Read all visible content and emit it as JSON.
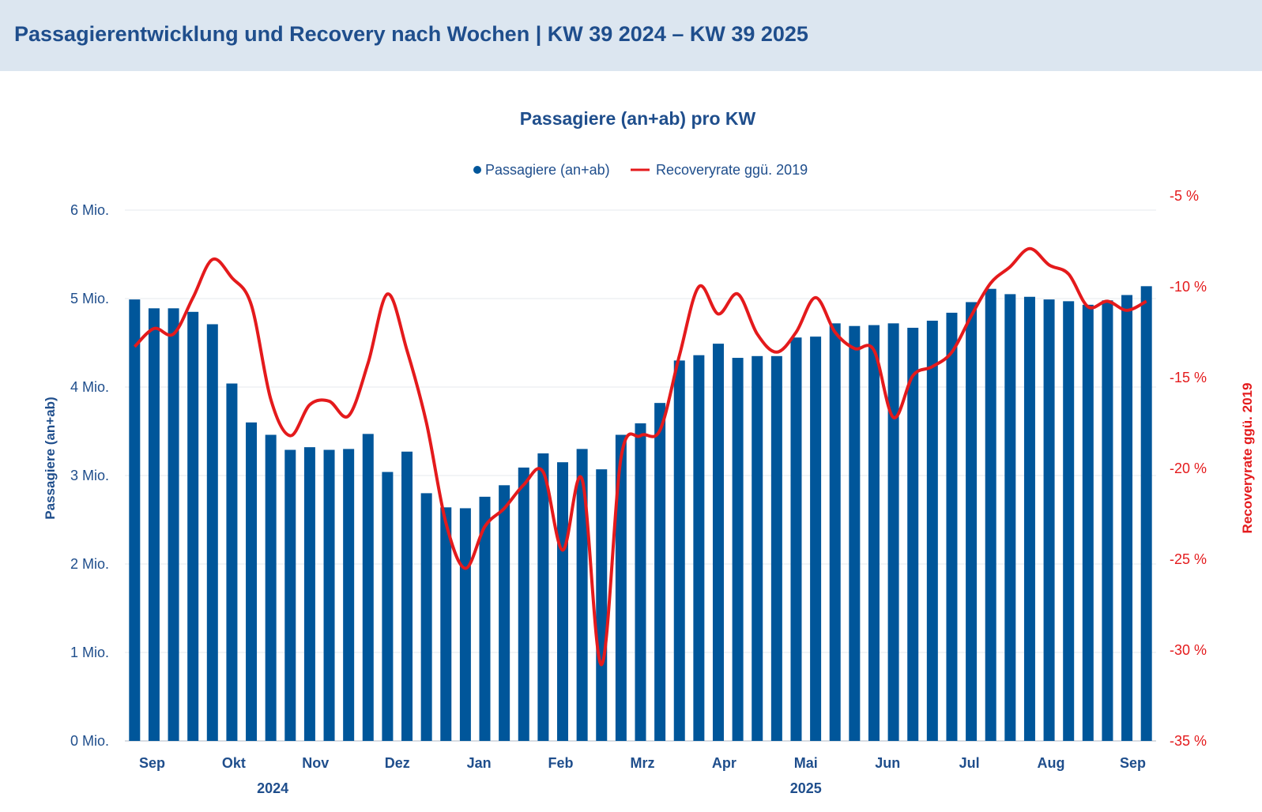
{
  "header": {
    "title": "Passagierentwicklung und Recovery nach Wochen | KW 39 2024 – KW 39 2025"
  },
  "colors": {
    "bar": "#00569a",
    "line": "#e41a1c",
    "header_bg": "#dce6f0",
    "title": "#1f4e8c"
  },
  "chart_data": {
    "type": "bar",
    "title": "Passagiere (an+ab) pro KW",
    "legend": {
      "placement": "top-center",
      "items": [
        "Passagiere (an+ab)",
        "Recoveryrate ggü. 2019"
      ]
    },
    "ylabel": "Passagiere (an+ab)",
    "y2label": "Recoveryrate ggü. 2019",
    "ylim": [
      0,
      6
    ],
    "y2lim": [
      -35,
      -5
    ],
    "y_ticks": [
      {
        "value": 0,
        "label": "0 Mio."
      },
      {
        "value": 1,
        "label": "1 Mio."
      },
      {
        "value": 2,
        "label": "2 Mio."
      },
      {
        "value": 3,
        "label": "3 Mio."
      },
      {
        "value": 4,
        "label": "4 Mio."
      },
      {
        "value": 5,
        "label": "5 Mio."
      },
      {
        "value": 6,
        "label": "6 Mio."
      }
    ],
    "y2_ticks": [
      {
        "value": -5,
        "label": "-5 %"
      },
      {
        "value": -10,
        "label": "-10 %"
      },
      {
        "value": -15,
        "label": "-15 %"
      },
      {
        "value": -20,
        "label": "-20 %"
      },
      {
        "value": -25,
        "label": "-25 %"
      },
      {
        "value": -30,
        "label": "-30 %"
      },
      {
        "value": -35,
        "label": "-35 %"
      }
    ],
    "grid": true,
    "month_labels": [
      {
        "label": "Sep",
        "week": 1.4
      },
      {
        "label": "Okt",
        "week": 5.6
      },
      {
        "label": "Nov",
        "week": 9.8
      },
      {
        "label": "Dez",
        "week": 14.0
      },
      {
        "label": "Jan",
        "week": 18.2
      },
      {
        "label": "Feb",
        "week": 22.4
      },
      {
        "label": "Mrz",
        "week": 26.6
      },
      {
        "label": "Apr",
        "week": 30.8
      },
      {
        "label": "Mai",
        "week": 35.0
      },
      {
        "label": "Jun",
        "week": 39.2
      },
      {
        "label": "Jul",
        "week": 43.4
      },
      {
        "label": "Aug",
        "week": 47.6
      },
      {
        "label": "Sep",
        "week": 51.8
      }
    ],
    "year_labels": [
      {
        "label": "2024",
        "week": 7.6
      },
      {
        "label": "2025",
        "week": 35.0
      }
    ],
    "series": [
      {
        "name": "Passagiere (an+ab)",
        "type": "bar",
        "axis": "left",
        "unit": "Mio.",
        "values": [
          4.99,
          4.89,
          4.89,
          4.85,
          4.71,
          4.04,
          3.6,
          3.46,
          3.29,
          3.32,
          3.29,
          3.3,
          3.47,
          3.04,
          3.27,
          2.8,
          2.64,
          2.63,
          2.76,
          2.89,
          3.09,
          3.25,
          3.15,
          3.3,
          3.07,
          3.46,
          3.59,
          3.82,
          4.3,
          4.36,
          4.49,
          4.33,
          4.35,
          4.35,
          4.56,
          4.57,
          4.72,
          4.69,
          4.7,
          4.72,
          4.67,
          4.75,
          4.84,
          4.96,
          5.11,
          5.05,
          5.02,
          4.99,
          4.97,
          4.93,
          4.98,
          5.04,
          5.14
        ]
      },
      {
        "name": "Recoveryrate ggü. 2019",
        "type": "line",
        "axis": "right",
        "unit": "%",
        "values": [
          -13.3,
          -12.3,
          -12.6,
          -10.6,
          -8.5,
          -9.5,
          -11.0,
          -16.2,
          -18.2,
          -16.5,
          -16.3,
          -17.1,
          -14.2,
          -10.4,
          -13.5,
          -17.5,
          -23.0,
          -25.5,
          -23.2,
          -22.2,
          -20.9,
          -20.2,
          -24.5,
          -20.6,
          -30.8,
          -19.4,
          -18.2,
          -17.9,
          -13.8,
          -10.0,
          -11.5,
          -10.4,
          -12.6,
          -13.6,
          -12.5,
          -10.6,
          -12.5,
          -13.4,
          -13.5,
          -17.2,
          -14.9,
          -14.4,
          -13.6,
          -11.6,
          -9.8,
          -8.9,
          -7.9,
          -8.8,
          -9.3,
          -11.1,
          -10.8,
          -11.3,
          -10.8
        ]
      }
    ]
  }
}
